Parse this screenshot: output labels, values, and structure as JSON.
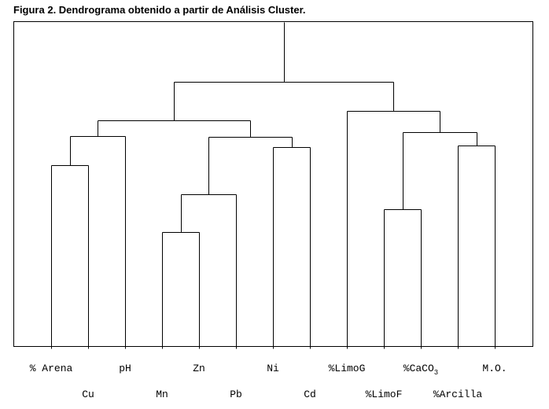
{
  "title": "Figura 2. Dendrograma obtenido a partir de Análisis Cluster.",
  "leaves": [
    {
      "label": "% Arena"
    },
    {
      "label": "Cu"
    },
    {
      "label": "pH"
    },
    {
      "label": "Mn"
    },
    {
      "label": "Zn"
    },
    {
      "label": "Pb"
    },
    {
      "label": "Ni"
    },
    {
      "label": "Cd"
    },
    {
      "label": "%LimoG"
    },
    {
      "label": "%LimoF"
    },
    {
      "label": "%CaCO",
      "sub": "3"
    },
    {
      "label": "%Arcilla"
    },
    {
      "label": "M.O."
    }
  ],
  "merges": [
    {
      "a": 0,
      "b": 1,
      "h": 0.559
    },
    {
      "a": "m0",
      "b": 2,
      "h": 0.648
    },
    {
      "a": 3,
      "b": 4,
      "h": 0.352
    },
    {
      "a": "m2",
      "b": 5,
      "h": 0.469
    },
    {
      "a": 6,
      "b": 7,
      "h": 0.613
    },
    {
      "a": "m3",
      "b": "m4",
      "h": 0.646
    },
    {
      "a": "m1",
      "b": "m5",
      "h": 0.697
    },
    {
      "a": 9,
      "b": 10,
      "h": 0.423
    },
    {
      "a": 11,
      "b": 12,
      "h": 0.618
    },
    {
      "a": "m7",
      "b": "m8",
      "h": 0.66
    },
    {
      "a": 8,
      "b": "m9",
      "h": 0.726
    },
    {
      "a": "m6",
      "b": "m10",
      "h": 0.816
    },
    {
      "a": "m11",
      "b": null,
      "h": 1.0
    }
  ]
}
